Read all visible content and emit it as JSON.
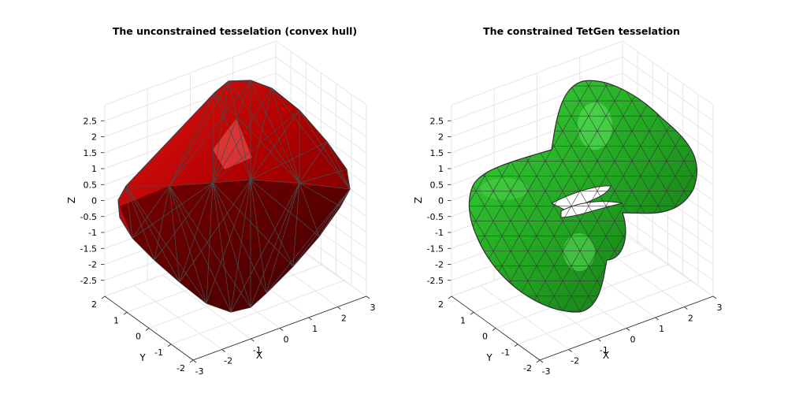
{
  "chart_data": [
    {
      "type": "surface",
      "title": "The unconstrained tesselation (convex hull)",
      "xlabel": "X",
      "ylabel": "Y",
      "zlabel": "Z",
      "x_ticks": [
        "-3",
        "-2",
        "-1",
        "0",
        "1",
        "2",
        "3"
      ],
      "y_ticks": [
        "-2",
        "-1",
        "0",
        "1",
        "2"
      ],
      "z_ticks": [
        "2.5",
        "2",
        "1.5",
        "1",
        "0.5",
        "0",
        "-0.5",
        "-1",
        "-1.5",
        "-2",
        "-2.5"
      ],
      "xlim": [
        -3,
        3
      ],
      "ylim": [
        -2,
        2
      ],
      "zlim": [
        -3,
        3
      ],
      "grid": true,
      "face_color": "#c00000",
      "edge_color": "#404040",
      "shape": "convex hull"
    },
    {
      "type": "surface",
      "title": "The constrained TetGen tesselation",
      "xlabel": "X",
      "ylabel": "Y",
      "zlabel": "Z",
      "x_ticks": [
        "-3",
        "-2",
        "-1",
        "0",
        "1",
        "2",
        "3"
      ],
      "y_ticks": [
        "-2",
        "-1",
        "0",
        "1",
        "2"
      ],
      "z_ticks": [
        "2.5",
        "2",
        "1.5",
        "1",
        "0.5",
        "0",
        "-0.5",
        "-1",
        "-1.5",
        "-2",
        "-2.5"
      ],
      "xlim": [
        -3,
        3
      ],
      "ylim": [
        -2,
        2
      ],
      "zlim": [
        -3,
        3
      ],
      "grid": true,
      "face_color": "#1fb51f",
      "edge_color": "#404040",
      "shape": "twisted tube"
    }
  ]
}
